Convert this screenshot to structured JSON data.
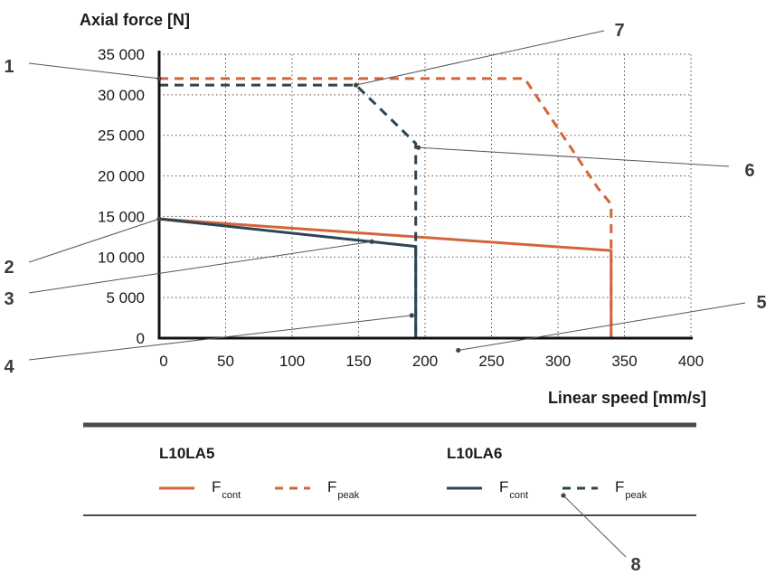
{
  "chart_data": {
    "type": "line",
    "ylabel": "Axial force [N]",
    "xlabel": "Linear speed [mm/s]",
    "xlim": [
      0,
      400
    ],
    "ylim": [
      0,
      35000
    ],
    "x_ticks": [
      0,
      50,
      100,
      150,
      200,
      250,
      300,
      350,
      400
    ],
    "y_ticks": [
      0,
      5000,
      10000,
      15000,
      20000,
      25000,
      30000,
      35000
    ],
    "x_tick_labels": [
      "0",
      "50",
      "100",
      "150",
      "200",
      "250",
      "300",
      "350",
      "400"
    ],
    "y_tick_labels": [
      "0",
      "5 000",
      "10 000",
      "15 000",
      "20 000",
      "25 000",
      "30 000",
      "35 000"
    ],
    "grid": "dotted",
    "series": [
      {
        "group": "L10LA5",
        "name": "F",
        "sub": "cont",
        "style": "solid",
        "color": "#d4643a",
        "points": [
          [
            0,
            14700
          ],
          [
            340,
            10800
          ],
          [
            340,
            0
          ]
        ]
      },
      {
        "group": "L10LA5",
        "name": "F",
        "sub": "peak",
        "style": "dashed",
        "color": "#d4643a",
        "points": [
          [
            0,
            32000
          ],
          [
            275,
            32000
          ],
          [
            330,
            18500
          ],
          [
            340,
            16500
          ],
          [
            340,
            0
          ]
        ]
      },
      {
        "group": "L10LA6",
        "name": "F",
        "sub": "cont",
        "style": "solid",
        "color": "#2c4555",
        "points": [
          [
            0,
            14700
          ],
          [
            193,
            11300
          ],
          [
            193,
            0
          ]
        ]
      },
      {
        "group": "L10LA6",
        "name": "F",
        "sub": "peak",
        "style": "dashed",
        "color": "#2c4555",
        "points": [
          [
            0,
            31200
          ],
          [
            148,
            31200
          ],
          [
            193,
            24000
          ],
          [
            193,
            0
          ]
        ]
      }
    ],
    "callouts": [
      {
        "label": "1",
        "point": [
          0,
          32000
        ]
      },
      {
        "label": "2",
        "point": [
          0,
          14700
        ]
      },
      {
        "label": "3",
        "point": [
          160,
          11900
        ]
      },
      {
        "label": "4",
        "point": [
          190,
          2800
        ]
      },
      {
        "label": "5",
        "point": [
          225,
          -1500
        ]
      },
      {
        "label": "6",
        "point": [
          195,
          23500
        ]
      },
      {
        "label": "7",
        "point": [
          148,
          31200
        ]
      },
      {
        "label": "8",
        "point": "legend-L10LA6-Fpeak"
      }
    ],
    "legend": {
      "placement": "bottom",
      "groups": [
        "L10LA5",
        "L10LA6"
      ]
    }
  }
}
